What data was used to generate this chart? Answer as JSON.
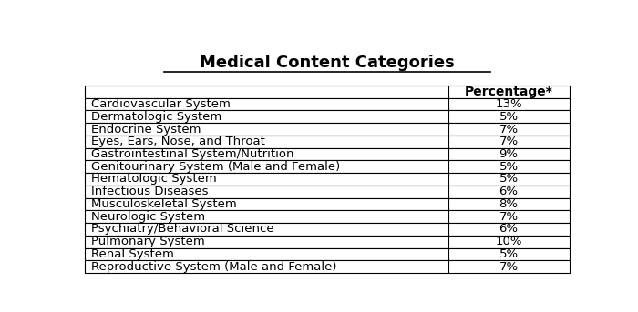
{
  "title": "Medical Content Categories",
  "col_header": "Percentage*",
  "categories": [
    "Cardiovascular System",
    "Dermatologic System",
    "Endocrine System",
    "Eyes, Ears, Nose, and Throat",
    "Gastrointestinal System/Nutrition",
    "Genitourinary System (Male and Female)",
    "Hematologic System",
    "Infectious Diseases",
    "Musculoskeletal System",
    "Neurologic System",
    "Psychiatry/Behavioral Science",
    "Pulmonary System",
    "Renal System",
    "Reproductive System (Male and Female)"
  ],
  "percentages": [
    "13%",
    "5%",
    "7%",
    "7%",
    "9%",
    "5%",
    "5%",
    "6%",
    "8%",
    "7%",
    "6%",
    "10%",
    "5%",
    "7%"
  ],
  "background_color": "#ffffff",
  "border_color": "#000000",
  "text_color": "#000000",
  "title_fontsize": 13,
  "header_fontsize": 10,
  "cell_fontsize": 9.5,
  "fig_width": 7.0,
  "fig_height": 3.43
}
